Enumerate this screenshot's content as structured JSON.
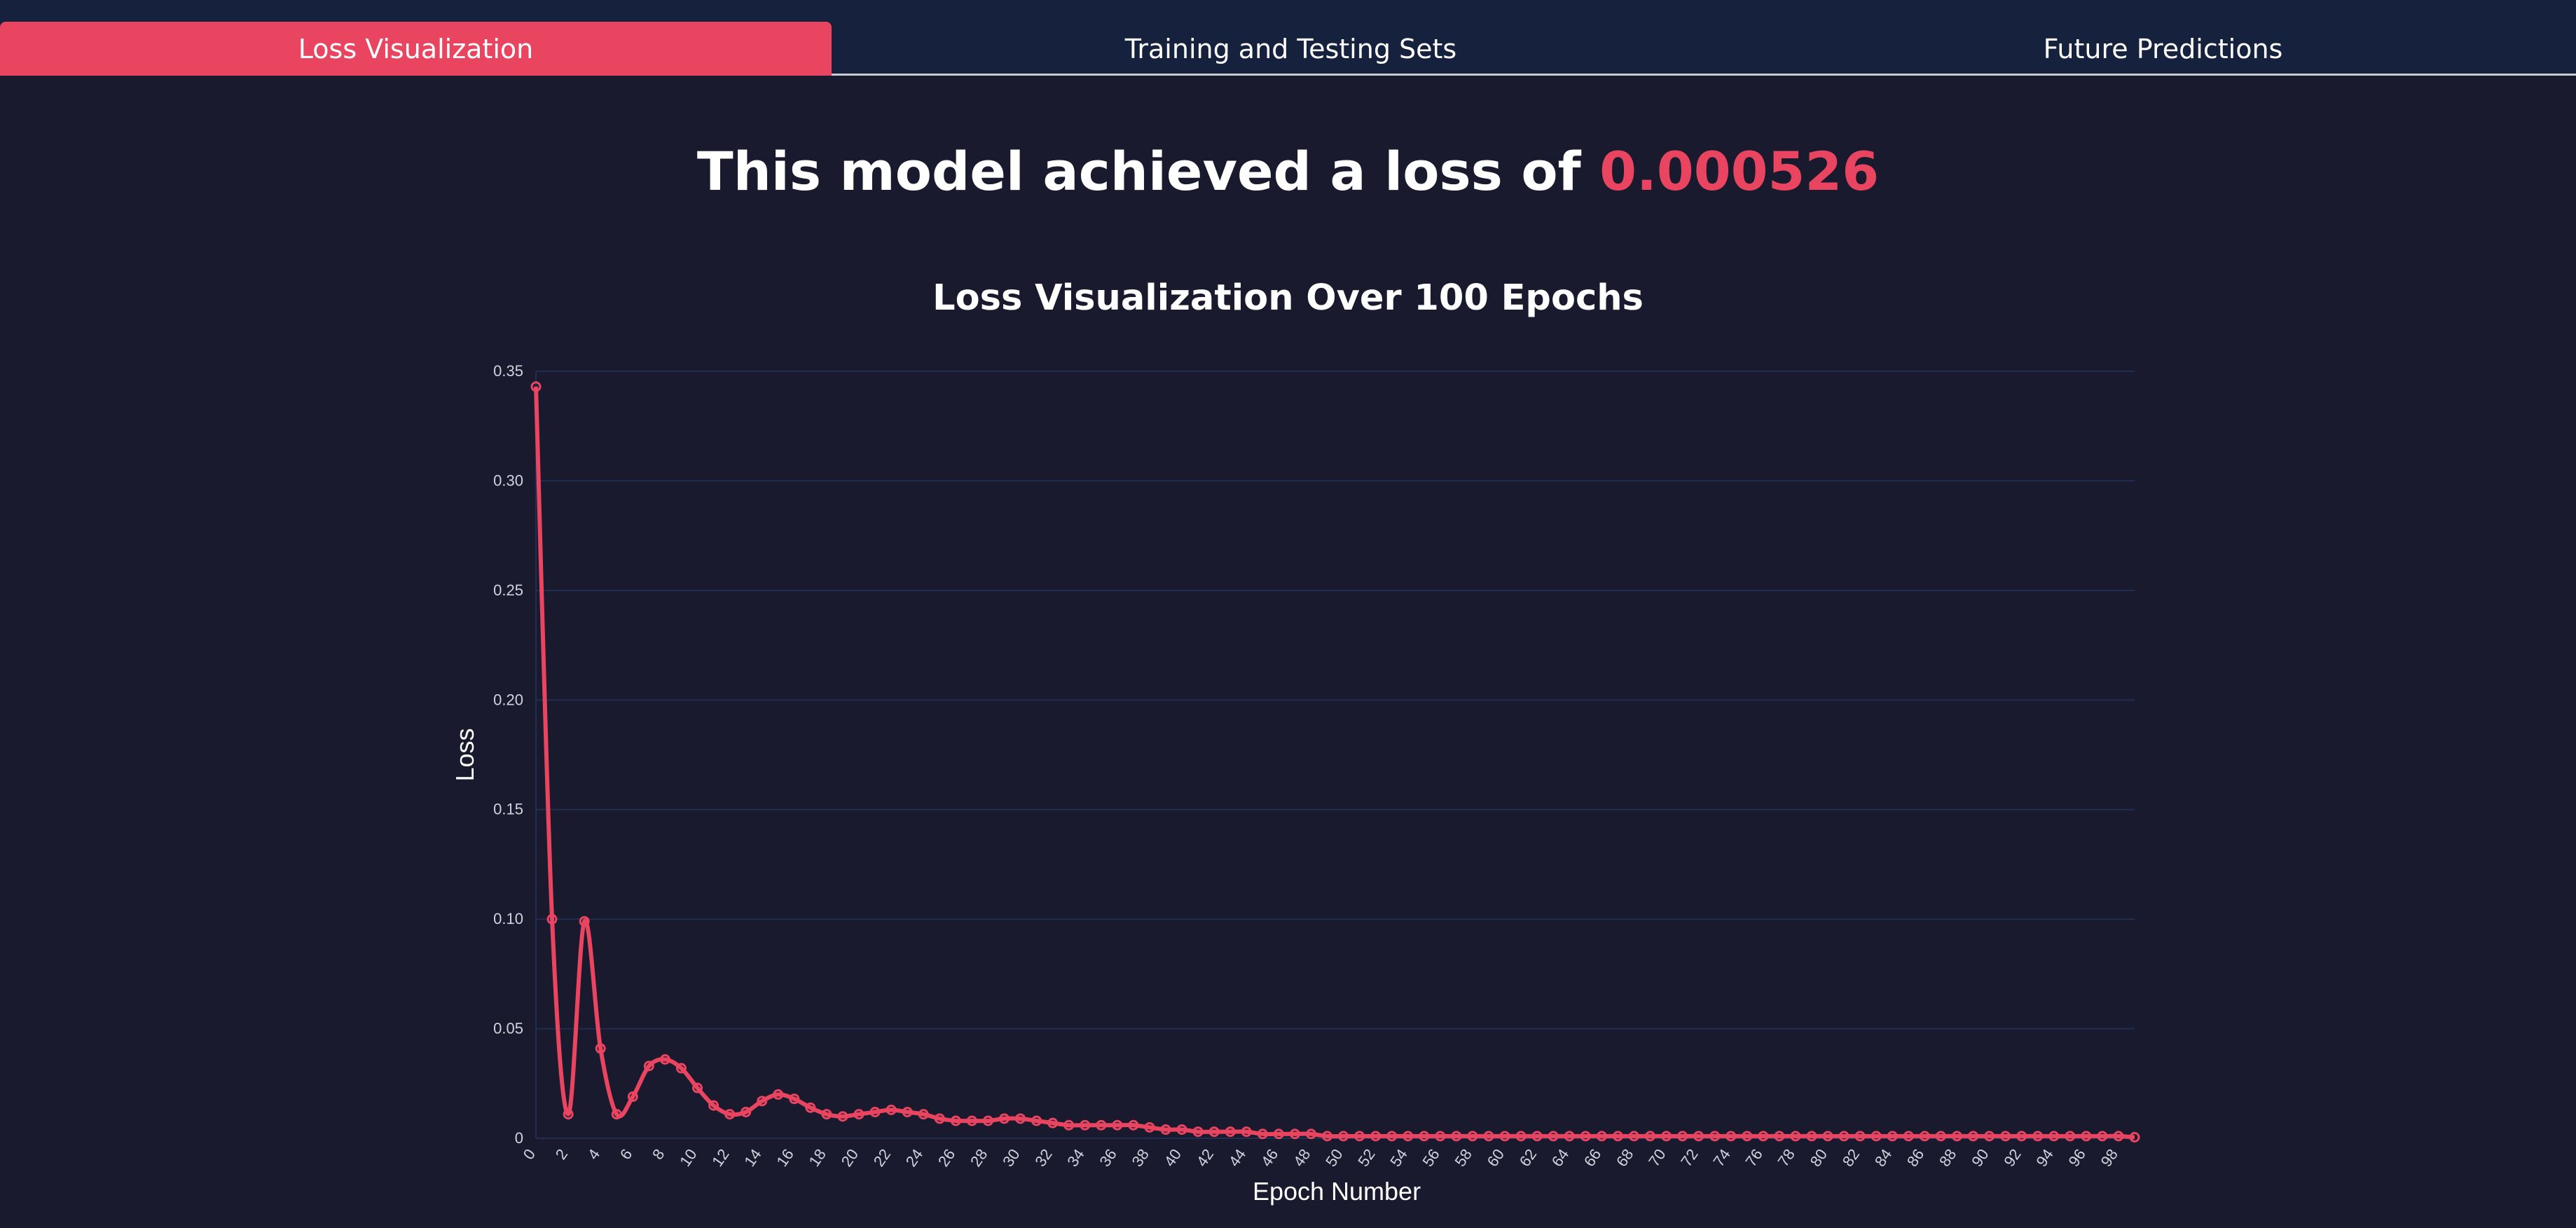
{
  "tabs": [
    {
      "label": "Loss Visualization",
      "active": true
    },
    {
      "label": "Training and Testing Sets",
      "active": false
    },
    {
      "label": "Future Predictions",
      "active": false
    }
  ],
  "headline": {
    "prefix": "This model achieved a loss of ",
    "value": "0.000526"
  },
  "colors": {
    "accent": "#e94560",
    "background": "#1a1a2e",
    "tabbar": "#16213e",
    "grid": "#1f2e52"
  },
  "chart_data": {
    "type": "line",
    "title": "Loss Visualization Over 100 Epochs",
    "xlabel": "Epoch Number",
    "ylabel": "Loss",
    "ylim": [
      0,
      0.35
    ],
    "yticks": [
      "0",
      "0.05",
      "0.10",
      "0.15",
      "0.20",
      "0.25",
      "0.30",
      "0.35"
    ],
    "grid": true,
    "x": [
      0,
      1,
      2,
      3,
      4,
      5,
      6,
      7,
      8,
      9,
      10,
      11,
      12,
      13,
      14,
      15,
      16,
      17,
      18,
      19,
      20,
      21,
      22,
      23,
      24,
      25,
      26,
      27,
      28,
      29,
      30,
      31,
      32,
      33,
      34,
      35,
      36,
      37,
      38,
      39,
      40,
      41,
      42,
      43,
      44,
      45,
      46,
      47,
      48,
      49,
      50,
      51,
      52,
      53,
      54,
      55,
      56,
      57,
      58,
      59,
      60,
      61,
      62,
      63,
      64,
      65,
      66,
      67,
      68,
      69,
      70,
      71,
      72,
      73,
      74,
      75,
      76,
      77,
      78,
      79,
      80,
      81,
      82,
      83,
      84,
      85,
      86,
      87,
      88,
      89,
      90,
      91,
      92,
      93,
      94,
      95,
      96,
      97,
      98,
      99
    ],
    "xticks": [
      "0",
      "2",
      "4",
      "6",
      "8",
      "10",
      "12",
      "14",
      "16",
      "18",
      "20",
      "22",
      "24",
      "26",
      "28",
      "30",
      "32",
      "34",
      "36",
      "38",
      "40",
      "42",
      "44",
      "46",
      "48",
      "50",
      "52",
      "54",
      "56",
      "58",
      "60",
      "62",
      "64",
      "66",
      "68",
      "70",
      "72",
      "74",
      "76",
      "78",
      "80",
      "82",
      "84",
      "86",
      "88",
      "90",
      "92",
      "94",
      "96",
      "98"
    ],
    "series": [
      {
        "values": [
          0.343,
          0.1,
          0.011,
          0.099,
          0.041,
          0.011,
          0.019,
          0.033,
          0.036,
          0.032,
          0.023,
          0.015,
          0.011,
          0.012,
          0.017,
          0.02,
          0.018,
          0.014,
          0.011,
          0.01,
          0.011,
          0.012,
          0.013,
          0.012,
          0.011,
          0.009,
          0.008,
          0.008,
          0.008,
          0.009,
          0.009,
          0.008,
          0.007,
          0.006,
          0.006,
          0.006,
          0.006,
          0.006,
          0.005,
          0.004,
          0.004,
          0.003,
          0.003,
          0.003,
          0.003,
          0.002,
          0.002,
          0.002,
          0.002,
          0.001,
          0.001,
          0.001,
          0.001,
          0.001,
          0.001,
          0.001,
          0.001,
          0.001,
          0.001,
          0.001,
          0.001,
          0.001,
          0.001,
          0.001,
          0.001,
          0.001,
          0.001,
          0.001,
          0.001,
          0.001,
          0.001,
          0.001,
          0.001,
          0.001,
          0.001,
          0.001,
          0.001,
          0.001,
          0.001,
          0.001,
          0.001,
          0.001,
          0.001,
          0.001,
          0.001,
          0.001,
          0.001,
          0.001,
          0.001,
          0.001,
          0.001,
          0.001,
          0.001,
          0.001,
          0.001,
          0.001,
          0.001,
          0.001,
          0.001,
          0.0005
        ]
      }
    ]
  }
}
